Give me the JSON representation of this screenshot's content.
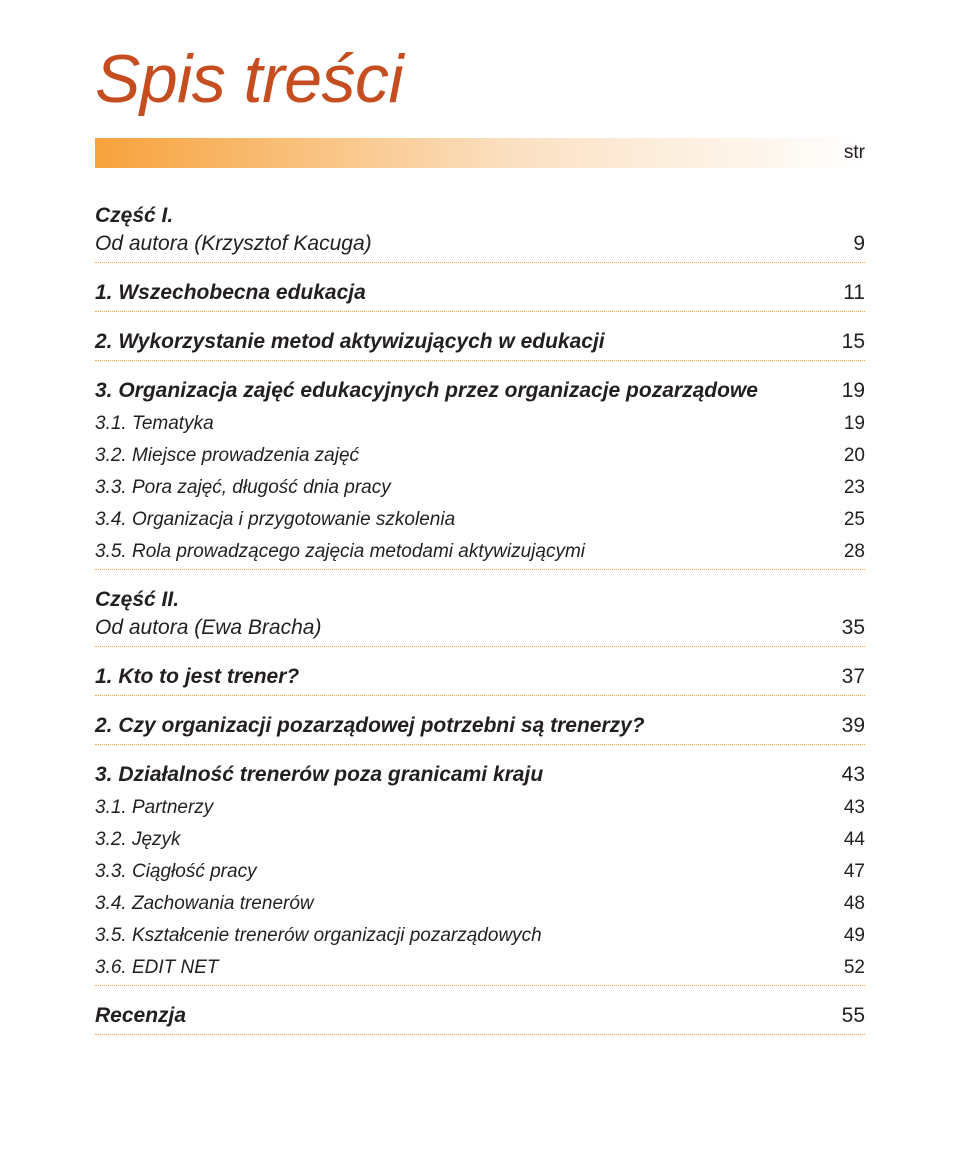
{
  "title": "Spis treści",
  "page_label": "str",
  "part1": {
    "heading": "Część I.",
    "author": {
      "text": "Od autora (Krzysztof Kacuga)",
      "page": "9"
    },
    "ch1": {
      "text": "1. Wszechobecna edukacja",
      "page": "11"
    },
    "ch2": {
      "text": "2. Wykorzystanie metod aktywizujących w edukacji",
      "page": "15"
    },
    "ch3": {
      "text": "3. Organizacja zajęć edukacyjnych przez organizacje pozarządowe",
      "page": "19"
    },
    "ch3_subs": [
      {
        "text": "3.1. Tematyka",
        "page": "19"
      },
      {
        "text": "3.2. Miejsce prowadzenia zajęć",
        "page": "20"
      },
      {
        "text": "3.3. Pora zajęć, długość dnia pracy",
        "page": "23"
      },
      {
        "text": "3.4. Organizacja i przygotowanie szkolenia",
        "page": "25"
      },
      {
        "text": "3.5. Rola prowadzącego zajęcia metodami aktywizującymi",
        "page": "28"
      }
    ]
  },
  "part2": {
    "heading": "Część II.",
    "author": {
      "text": "Od autora (Ewa Bracha)",
      "page": "35"
    },
    "ch1": {
      "text": "1. Kto to jest trener?",
      "page": "37"
    },
    "ch2": {
      "text": "2. Czy organizacji pozarządowej potrzebni są trenerzy?",
      "page": "39"
    },
    "ch3": {
      "text": "3. Działalność trenerów poza granicami kraju",
      "page": "43"
    },
    "ch3_subs": [
      {
        "text": "3.1. Partnerzy",
        "page": "43"
      },
      {
        "text": "3.2. Język",
        "page": "44"
      },
      {
        "text": "3.3. Ciągłość pracy",
        "page": "47"
      },
      {
        "text": "3.4. Zachowania trenerów",
        "page": "48"
      },
      {
        "text": "3.5. Kształcenie trenerów organizacji pozarządowych",
        "page": "49"
      },
      {
        "text": "3.6. EDIT NET",
        "page": "52"
      }
    ],
    "review": {
      "text": "Recenzja",
      "page": "55"
    }
  }
}
